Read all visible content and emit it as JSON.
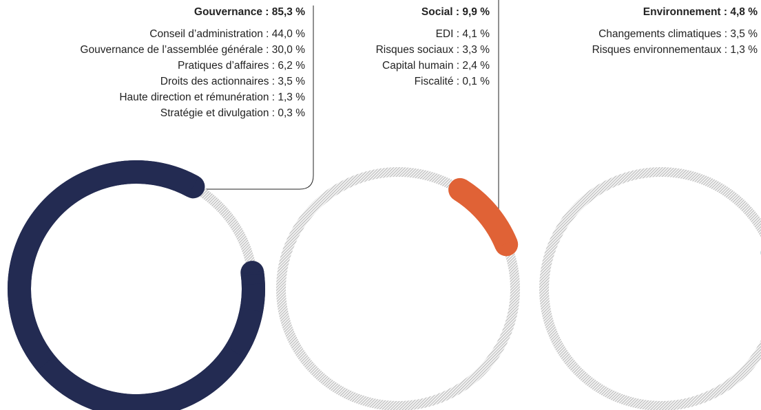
{
  "chart_data": [
    {
      "type": "donut",
      "title": "Gouvernance : 85,3 %",
      "value": 85.3,
      "color": "#232b52",
      "items": [
        {
          "label": "Conseil d’administration : 44,0 %",
          "value": 44.0
        },
        {
          "label": "Gouvernance de l’assemblée générale : 30,0 %",
          "value": 30.0
        },
        {
          "label": "Pratiques d’affaires : 6,2 %",
          "value": 6.2
        },
        {
          "label": "Droits des actionnaires : 3,5 %",
          "value": 3.5
        },
        {
          "label": "Haute direction et rémunération : 1,3 %",
          "value": 1.3
        },
        {
          "label": "Stratégie et divulgation : 0,3 %",
          "value": 0.3
        }
      ]
    },
    {
      "type": "donut",
      "title": "Social : 9,9 %",
      "value": 9.9,
      "color": "#e06236",
      "items": [
        {
          "label": "EDI : 4,1 %",
          "value": 4.1
        },
        {
          "label": "Risques sociaux : 3,3 %",
          "value": 3.3
        },
        {
          "label": "Capital humain : 2,4 %",
          "value": 2.4
        },
        {
          "label": "Fiscalité : 0,1 %",
          "value": 0.1
        }
      ]
    },
    {
      "type": "donut",
      "title": "Environnement  : 4,8 %",
      "value": 4.8,
      "color": "#3d9a9a",
      "items": [
        {
          "label": "Changements climatiques : 3,5 %",
          "value": 3.5
        },
        {
          "label": "Risques environnementaux : 1,3 %",
          "value": 1.3
        }
      ]
    }
  ]
}
